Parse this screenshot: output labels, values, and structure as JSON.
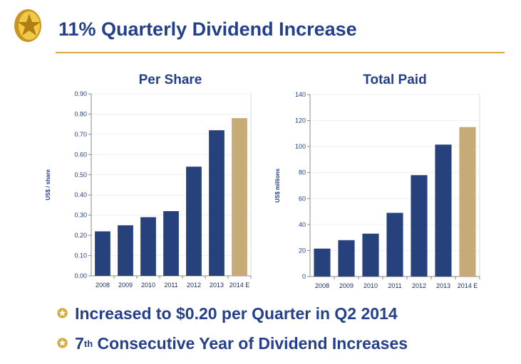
{
  "header": {
    "title": "11% Quarterly Dividend Increase"
  },
  "bullets": [
    {
      "text": "Increased to $0.20 per Quarter in Q2 2014"
    },
    {
      "pre": "7",
      "sup": "th",
      "text": " Consecutive Year of Dividend Increases"
    }
  ],
  "colors": {
    "actual": "#27417c",
    "estimate": "#c6ab76",
    "navy": "#25408a"
  },
  "chart_data": [
    {
      "type": "bar",
      "title": "Per Share",
      "ylabel": "US$ / share",
      "xlabel": "",
      "categories": [
        "2008",
        "2009",
        "2010",
        "2011",
        "2012",
        "2013",
        "2014 E"
      ],
      "values": [
        0.22,
        0.25,
        0.29,
        0.32,
        0.54,
        0.72,
        0.78
      ],
      "ylim": [
        0,
        0.9
      ],
      "yticks": [
        "0.00",
        "0.10",
        "0.20",
        "0.30",
        "0.40",
        "0.50",
        "0.60",
        "0.70",
        "0.80",
        "0.90"
      ],
      "grid": true
    },
    {
      "type": "bar",
      "title": "Total Paid",
      "ylabel": "US$ millions",
      "xlabel": "",
      "categories": [
        "2008",
        "2009",
        "2010",
        "2011",
        "2012",
        "2013",
        "2014 E"
      ],
      "values": [
        21.5,
        28,
        33,
        49,
        78,
        101.5,
        115
      ],
      "ylim": [
        0,
        140
      ],
      "yticks": [
        "0",
        "20",
        "40",
        "60",
        "80",
        "100",
        "120",
        "140"
      ],
      "grid": true
    }
  ]
}
